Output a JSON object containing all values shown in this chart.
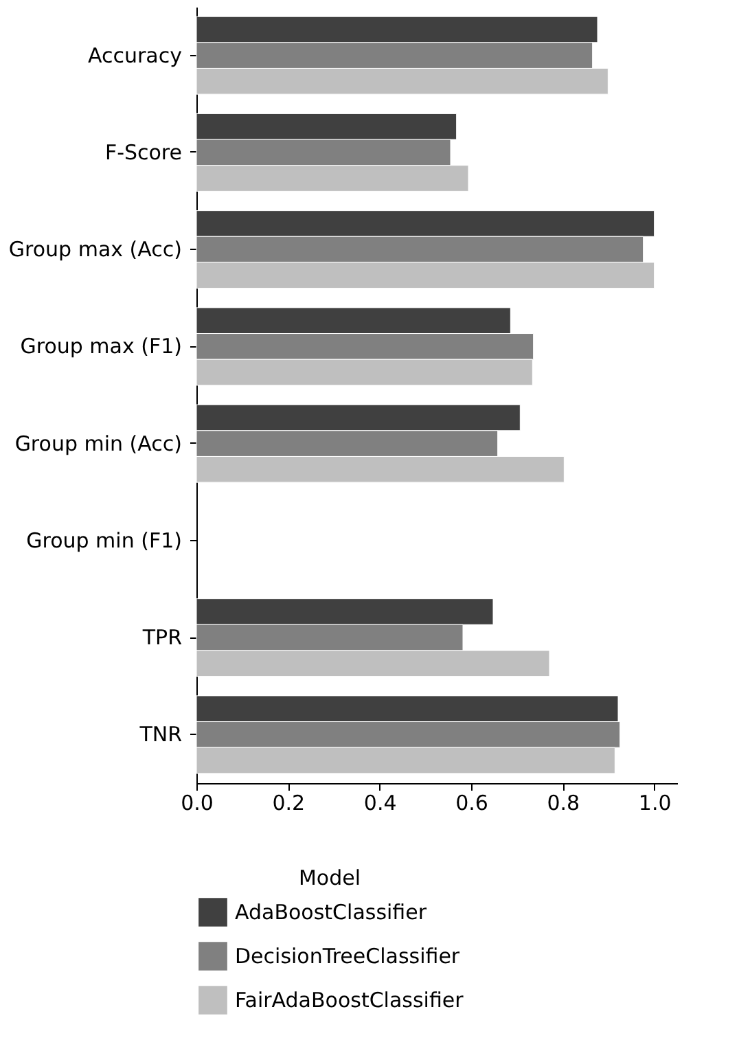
{
  "chart_data": {
    "type": "bar",
    "orientation": "horizontal",
    "legend_title": "Model",
    "legend": "bottom",
    "categories": [
      "Accuracy",
      "F-Score",
      "Group max (Acc)",
      "Group max (F1)",
      "Group min (Acc)",
      "Group min (F1)",
      "TPR",
      "TNR"
    ],
    "series": [
      {
        "name": "AdaBoostClassifier",
        "color": "#404040",
        "values": [
          0.876,
          0.568,
          1.0,
          0.686,
          0.707,
          null,
          0.648,
          0.921
        ]
      },
      {
        "name": "DecisionTreeClassifier",
        "color": "#808080",
        "values": [
          0.865,
          0.555,
          0.976,
          0.736,
          0.658,
          null,
          0.582,
          0.925
        ]
      },
      {
        "name": "FairAdaBoostClassifier",
        "color": "#bfbfbf",
        "values": [
          0.899,
          0.594,
          1.0,
          0.734,
          0.803,
          null,
          0.771,
          0.914
        ]
      }
    ],
    "xlim": [
      0,
      1.05
    ],
    "xticks": [
      {
        "value": 0,
        "label": "0.0"
      },
      0.2,
      0.4,
      0.6,
      0.8,
      {
        "value": 1,
        "label": "1.0"
      }
    ],
    "grid": false
  }
}
